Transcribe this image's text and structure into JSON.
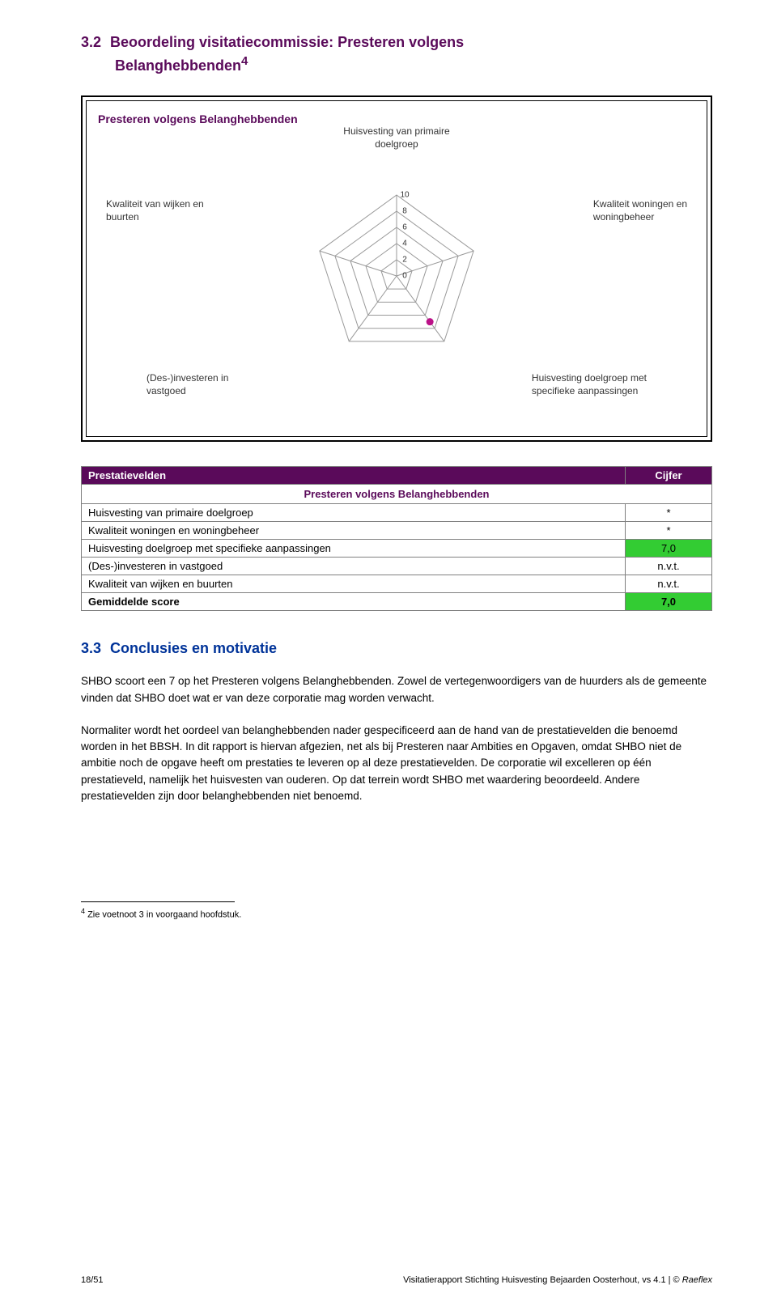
{
  "colors": {
    "heading": "#5a0a5a",
    "subheading": "#003399",
    "table_header_bg": "#5a0a5a",
    "table_header_fg": "#ffffff",
    "green_cell": "#33cc33",
    "border": "#808080",
    "text": "#000000",
    "axis_text": "#333333",
    "grid_line": "#999999",
    "marker": "#bb1188",
    "background": "#ffffff"
  },
  "section": {
    "number": "3.2",
    "title_line1": "Beoordeling visitatiecommissie: Presteren volgens",
    "title_line2_prefix": "Belanghebbenden",
    "title_superscript": "4"
  },
  "chart": {
    "type": "radar",
    "title": "Presteren volgens Belanghebbenden",
    "axes": [
      {
        "key": "top",
        "label": "Huisvesting van primaire\ndoelgroep"
      },
      {
        "key": "right_upper",
        "label": "Kwaliteit woningen en\nwoningbeheer"
      },
      {
        "key": "right_lower",
        "label": "Huisvesting doelgroep met\nspecifieke aanpassingen"
      },
      {
        "key": "left_lower",
        "label": "(Des-)investeren in\nvastgoed"
      },
      {
        "key": "left_upper",
        "label": "Kwaliteit van wijken en\nbuurten"
      }
    ],
    "ticks": [
      10,
      8,
      6,
      4,
      2,
      0
    ],
    "max": 10,
    "ring_radius": 100,
    "grid_color": "#999999",
    "marker": {
      "axis_index": 2,
      "value": 7.0,
      "color": "#bb1188"
    },
    "title_fontsize": 14,
    "label_fontsize": 12,
    "tick_fontsize": 10
  },
  "table": {
    "title": "Presteren volgens Belanghebbenden",
    "header": {
      "col1": "Prestatievelden",
      "col2": "Cijfer"
    },
    "rows": [
      {
        "label": "Huisvesting van primaire doelgroep",
        "score": "*",
        "green": false,
        "bold": false
      },
      {
        "label": "Kwaliteit woningen en woningbeheer",
        "score": "*",
        "green": false,
        "bold": false
      },
      {
        "label": "Huisvesting doelgroep met specifieke aanpassingen",
        "score": "7,0",
        "green": true,
        "bold": false
      },
      {
        "label": "(Des-)investeren in vastgoed",
        "score": "n.v.t.",
        "green": false,
        "bold": false
      },
      {
        "label": "Kwaliteit van wijken en buurten",
        "score": "n.v.t.",
        "green": false,
        "bold": false
      },
      {
        "label": "Gemiddelde score",
        "score": "7,0",
        "green": true,
        "bold": true
      }
    ]
  },
  "subsection": {
    "number": "3.3",
    "title": "Conclusies en motivatie"
  },
  "paragraphs": {
    "p1": "SHBO scoort een 7 op het Presteren volgens Belanghebbenden. Zowel de vertegenwoordigers van de huurders als de gemeente vinden dat SHBO doet wat er van deze corporatie mag worden verwacht.",
    "p2": "Normaliter wordt het oordeel van belanghebbenden nader gespecificeerd aan de hand van de prestatievelden die benoemd worden in het BBSH. In dit rapport is hiervan afgezien, net als bij Presteren naar Ambities en Opgaven, omdat SHBO niet de ambitie noch de opgave heeft om prestaties te leveren op al deze prestatievelden. De corporatie wil excelleren op één prestatieveld, namelijk het huisvesten van ouderen. Op dat terrein wordt SHBO met waardering beoordeeld. Andere prestatievelden zijn door belanghebbenden niet benoemd."
  },
  "footnote": {
    "marker": "4",
    "text": "Zie voetnoot 3 in voorgaand hoofdstuk."
  },
  "footer": {
    "left": "18/51",
    "right_plain": "Visitatierapport Stichting Huisvesting Bejaarden Oosterhout, vs 4.1 | © ",
    "right_italic": "Raeflex"
  }
}
